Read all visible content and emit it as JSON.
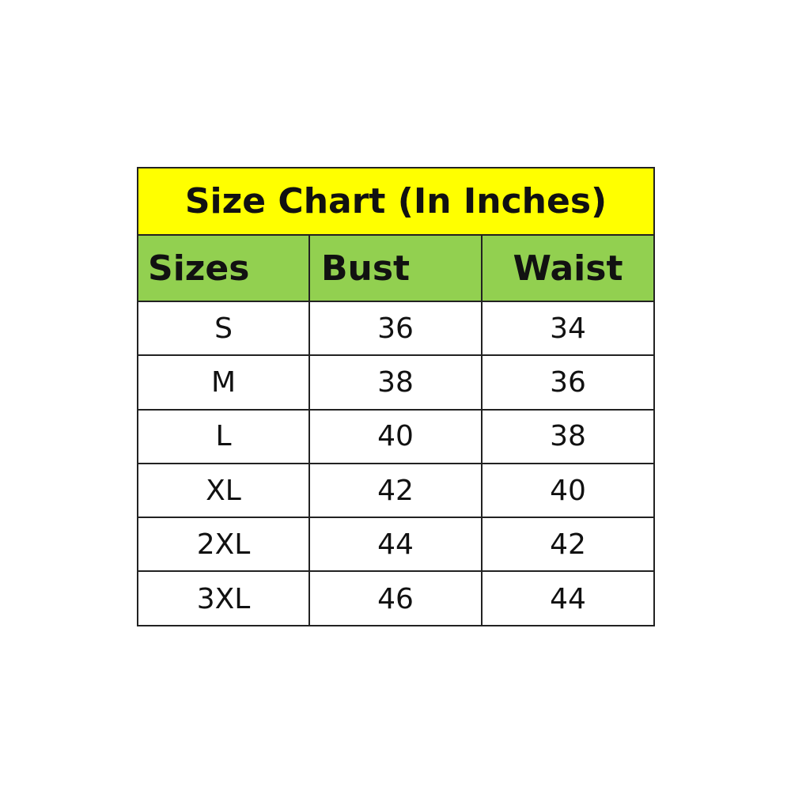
{
  "title": "Size Chart (In Inches)",
  "colors": {
    "title_bg": "#ffff00",
    "header_bg": "#92d050"
  },
  "headers": [
    "Sizes",
    "Bust",
    "Waist"
  ],
  "rows": [
    [
      "S",
      "36",
      "34"
    ],
    [
      "M",
      "38",
      "36"
    ],
    [
      "L",
      "40",
      "38"
    ],
    [
      "XL",
      "42",
      "40"
    ],
    [
      "2XL",
      "44",
      "42"
    ],
    [
      "3XL",
      "46",
      "44"
    ]
  ]
}
